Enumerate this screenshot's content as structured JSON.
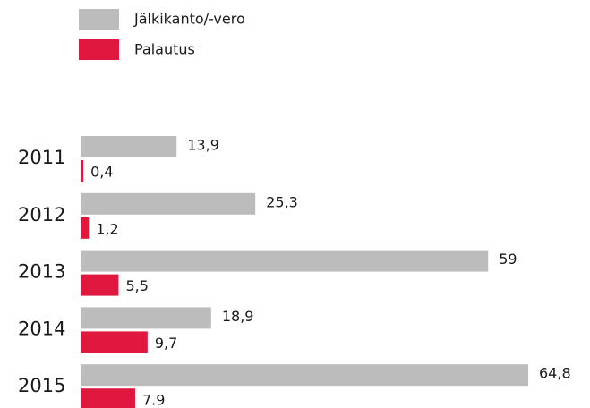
{
  "chart_data": {
    "type": "bar",
    "orientation": "horizontal",
    "categories": [
      "2011",
      "2012",
      "2013",
      "2014",
      "2015"
    ],
    "series": [
      {
        "name": "Jälkikanto/-vero",
        "color": "#bcbcbc",
        "values": [
          13.9,
          25.3,
          59,
          18.9,
          64.8
        ],
        "value_labels": [
          "13,9",
          "25,3",
          "59",
          "18,9",
          "64,8"
        ]
      },
      {
        "name": "Palautus",
        "color": "#e0173f",
        "values": [
          0.4,
          1.2,
          5.5,
          9.7,
          7.9
        ],
        "value_labels": [
          "0,4",
          "1,2",
          "5,5",
          "9,7",
          "7.9"
        ]
      }
    ]
  }
}
